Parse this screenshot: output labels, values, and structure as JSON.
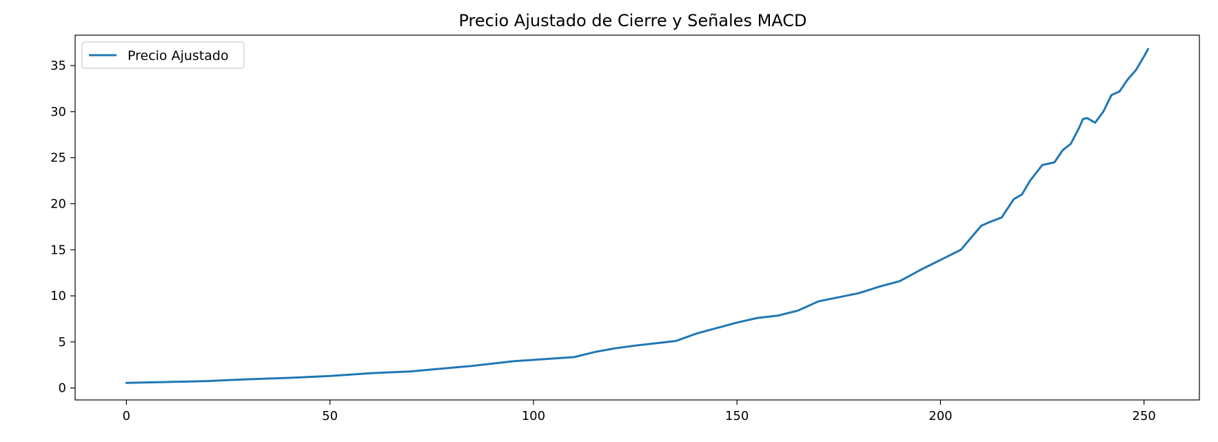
{
  "chart_data": {
    "type": "line",
    "title": "Precio Ajustado de Cierre y Señales MACD",
    "xlabel": "",
    "ylabel": "",
    "xlim": [
      -12.6,
      263.6
    ],
    "ylim": [
      -1.3,
      38.3
    ],
    "xticks": [
      0,
      50,
      100,
      150,
      200,
      250
    ],
    "yticks": [
      0,
      5,
      10,
      15,
      20,
      25,
      30,
      35
    ],
    "grid": false,
    "legend": {
      "position": "top-left"
    },
    "series": [
      {
        "name": "Precio Ajustado",
        "color": "#1f77b4",
        "x": [
          0,
          10,
          20,
          25,
          30,
          40,
          45,
          50,
          55,
          60,
          65,
          70,
          75,
          80,
          85,
          90,
          95,
          100,
          105,
          110,
          115,
          120,
          125,
          130,
          135,
          140,
          145,
          150,
          155,
          160,
          165,
          170,
          175,
          180,
          185,
          190,
          195,
          200,
          205,
          210,
          212,
          215,
          218,
          220,
          222,
          225,
          228,
          230,
          232,
          234,
          235,
          236,
          238,
          240,
          242,
          244,
          246,
          248,
          250,
          251
        ],
        "values": [
          0.55,
          0.65,
          0.75,
          0.85,
          0.95,
          1.1,
          1.2,
          1.3,
          1.45,
          1.6,
          1.7,
          1.8,
          2.0,
          2.2,
          2.4,
          2.65,
          2.9,
          3.05,
          3.2,
          3.35,
          3.9,
          4.3,
          4.6,
          4.85,
          5.1,
          5.9,
          6.5,
          7.1,
          7.6,
          7.85,
          8.4,
          9.4,
          9.85,
          10.3,
          11.0,
          11.6,
          12.8,
          13.9,
          15.0,
          17.6,
          18.0,
          18.5,
          20.5,
          21.0,
          22.5,
          24.2,
          24.5,
          25.8,
          26.5,
          28.2,
          29.2,
          29.3,
          28.8,
          30.0,
          31.8,
          32.2,
          33.5,
          34.5,
          36.0,
          36.8
        ]
      }
    ]
  }
}
